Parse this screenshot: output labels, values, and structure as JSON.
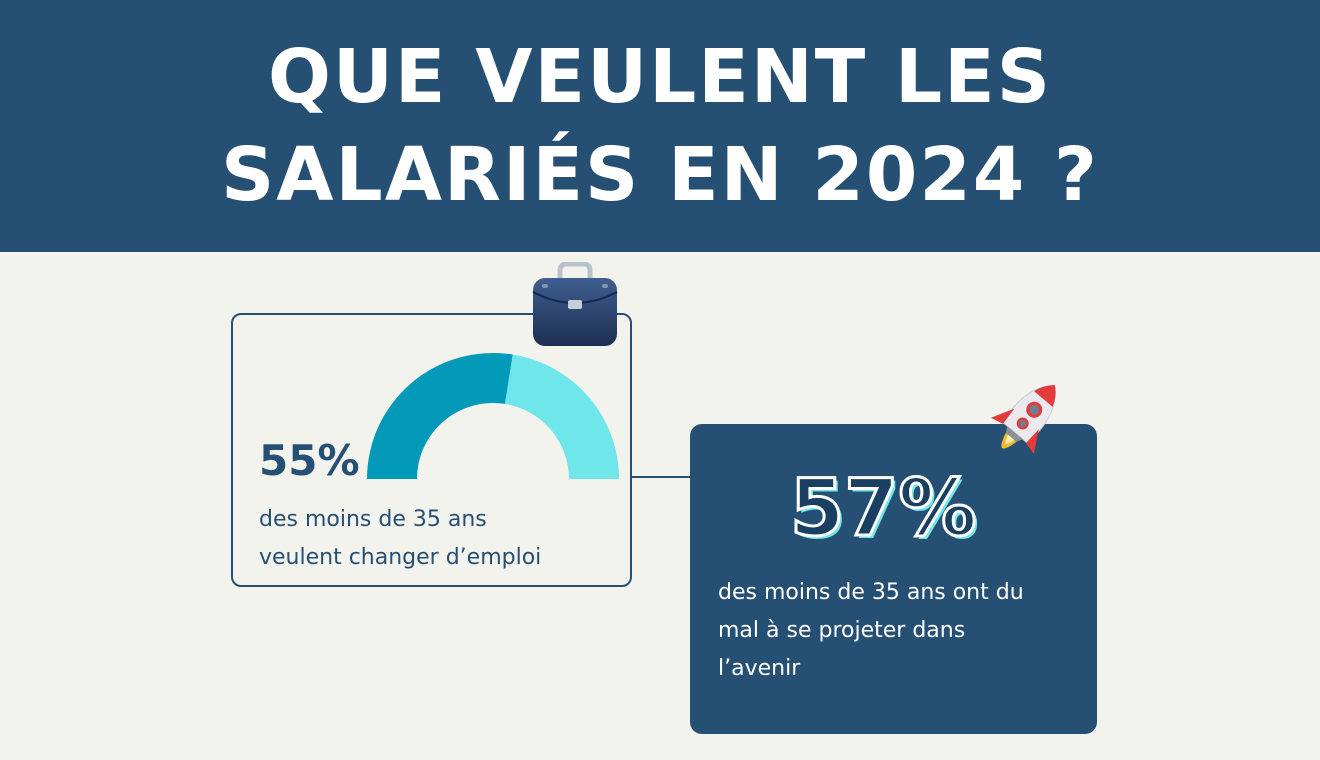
{
  "header": {
    "title_line1": "QUE VEULENT LES",
    "title_line2": "SALARIÉS EN 2024 ?"
  },
  "stats": [
    {
      "value": "55%",
      "description_line1": "des moins de 35 ans",
      "description_line2": "veulent changer d’emploi",
      "gauge_fraction": 0.55,
      "icon": "briefcase-icon"
    },
    {
      "value": "57%",
      "description_line1": "des moins de 35 ans ont du",
      "description_line2": "mal à se projeter dans",
      "description_line3": "l’avenir",
      "icon": "rocket-icon"
    }
  ],
  "colors": {
    "navy": "#265073",
    "background": "#f3f3ee",
    "gauge_primary": "#0399b8",
    "gauge_remainder": "#6ee6ea"
  }
}
